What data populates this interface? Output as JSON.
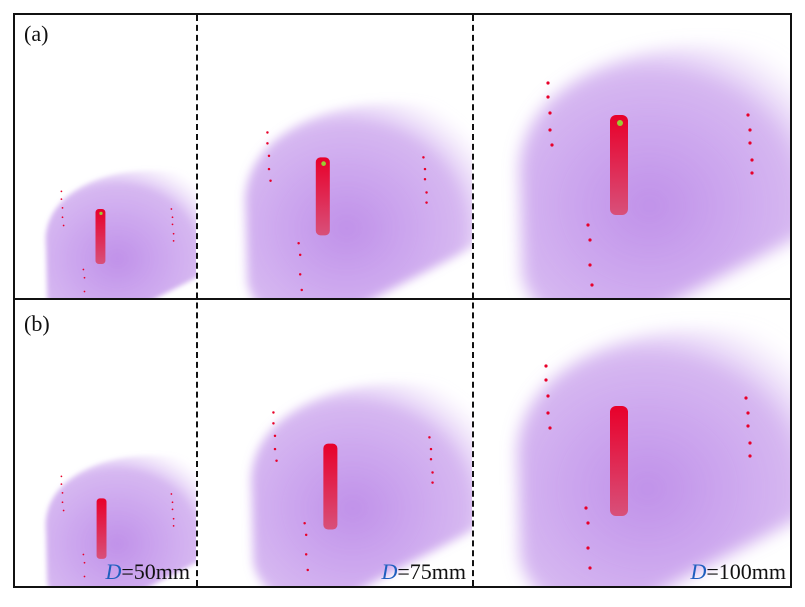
{
  "figure": {
    "rows": [
      {
        "label": "(a)"
      },
      {
        "label": "(b)"
      }
    ],
    "columns": [
      {
        "d_var": "D",
        "d_value": "=50mm"
      },
      {
        "d_var": "D",
        "d_value": "=75mm"
      },
      {
        "d_var": "D",
        "d_value": "=100mm"
      }
    ],
    "colors": {
      "volume": "#b57ee6",
      "volume_light": "#e3cdf7",
      "lesion": "#e8002a",
      "lesion_fade": "#d8507a",
      "highlight": "#9acd32",
      "border": "#111111"
    }
  }
}
